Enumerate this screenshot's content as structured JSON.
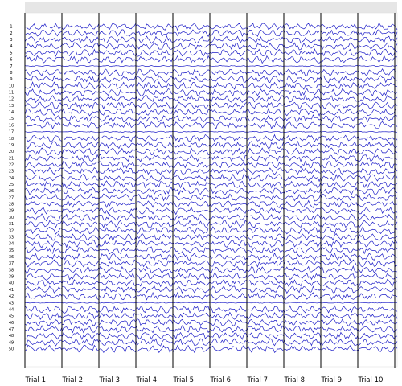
{
  "chart_data": {
    "type": "line",
    "title": "",
    "xlabel": "",
    "ylabel": "",
    "trials": [
      "Trial 1",
      "Trial 2",
      "Trial 3",
      "Trial 4",
      "Trial 5",
      "Trial 6",
      "Trial 7",
      "Trial 8",
      "Trial 9",
      "Trial 10"
    ],
    "channels": [
      "1",
      "2",
      "3",
      "4",
      "5",
      "6",
      "7",
      "8",
      "9",
      "10",
      "11",
      "12",
      "13",
      "14",
      "15",
      "16",
      "17",
      "18",
      "19",
      "20",
      "21",
      "22",
      "23",
      "24",
      "25",
      "26",
      "27",
      "28",
      "29",
      "30",
      "31",
      "32",
      "33",
      "34",
      "35",
      "36",
      "37",
      "38",
      "39",
      "40",
      "41",
      "42",
      "43",
      "44",
      "45",
      "46",
      "47",
      "48",
      "49",
      "50"
    ],
    "samples_per_trial": 24,
    "trace_color": "#1f1fc8",
    "separator_color": "#000000",
    "header_band_color": "#e6e6e6",
    "grid": false,
    "legend": "none"
  }
}
